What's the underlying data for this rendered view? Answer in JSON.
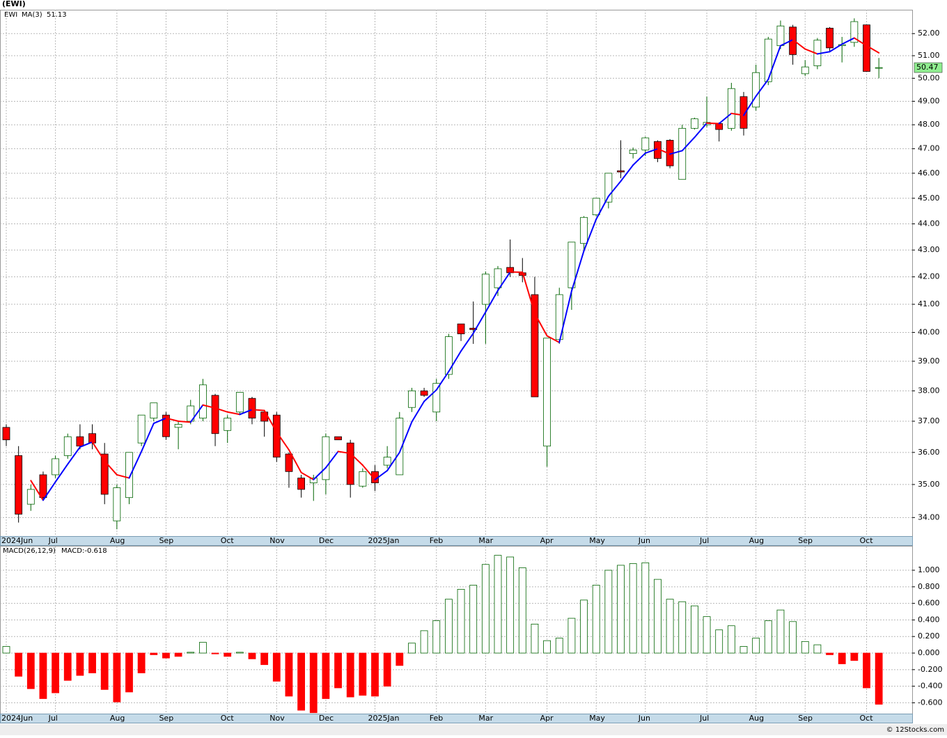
{
  "footer": "© 12Stocks.com",
  "chart_data": [
    {
      "type": "candlestick",
      "title": "(EWI)",
      "symbol": "EWI",
      "categories": [
        "2024Jun",
        null,
        null,
        null,
        "Jul",
        null,
        null,
        null,
        null,
        "Aug",
        null,
        null,
        null,
        "Sep",
        null,
        null,
        null,
        null,
        "Oct",
        null,
        null,
        null,
        "Nov",
        null,
        null,
        null,
        "Dec",
        null,
        null,
        null,
        "2025Jan",
        null,
        null,
        null,
        null,
        "Feb",
        null,
        null,
        null,
        "Mar",
        null,
        null,
        null,
        null,
        "Apr",
        null,
        null,
        null,
        "May",
        null,
        null,
        null,
        "Jun",
        null,
        null,
        null,
        null,
        "Jul",
        null,
        null,
        null,
        "Aug",
        null,
        null,
        null,
        "Sep",
        null,
        null,
        null,
        null,
        "Oct",
        null
      ],
      "open": [
        36.8,
        35.9,
        34.4,
        35.3,
        35.3,
        35.9,
        36.5,
        36.6,
        35.95,
        33.9,
        34.6,
        36.3,
        37.1,
        37.2,
        36.8,
        37.0,
        37.1,
        37.85,
        36.7,
        37.3,
        37.75,
        37.3,
        37.2,
        35.95,
        35.2,
        35.05,
        35.15,
        36.5,
        36.3,
        34.95,
        35.4,
        35.6,
        35.3,
        37.45,
        38.0,
        37.3,
        38.55,
        40.3,
        40.15,
        41.0,
        41.6,
        42.35,
        42.15,
        41.35,
        36.2,
        39.75,
        41.6,
        43.25,
        44.35,
        44.85,
        46.1,
        46.8,
        46.95,
        47.3,
        47.35,
        45.75,
        47.85,
        48.0,
        48.05,
        47.85,
        49.2,
        48.75,
        49.85,
        51.45,
        52.3,
        50.2,
        50.55,
        52.25,
        51.45,
        51.6,
        52.4,
        50.45
      ],
      "high": [
        36.9,
        36.2,
        35.0,
        35.4,
        35.9,
        36.6,
        36.9,
        36.9,
        36.3,
        35.0,
        36.0,
        37.2,
        37.6,
        37.3,
        37.0,
        37.7,
        38.4,
        37.9,
        37.2,
        37.95,
        37.8,
        37.3,
        37.3,
        36.0,
        35.3,
        35.3,
        36.6,
        36.5,
        36.4,
        35.5,
        35.6,
        36.2,
        37.3,
        38.1,
        38.1,
        38.4,
        39.95,
        40.3,
        41.1,
        42.2,
        42.4,
        43.4,
        42.7,
        42.0,
        39.8,
        41.6,
        43.3,
        44.3,
        45.0,
        46.0,
        47.35,
        47.05,
        47.5,
        47.35,
        47.4,
        48.0,
        48.3,
        49.2,
        48.1,
        49.8,
        49.4,
        50.6,
        51.85,
        52.6,
        52.4,
        50.8,
        51.8,
        52.3,
        51.85,
        52.7,
        52.4,
        50.9
      ],
      "low": [
        36.2,
        33.85,
        34.2,
        34.5,
        35.2,
        35.8,
        36.1,
        36.1,
        34.4,
        33.65,
        34.4,
        36.2,
        37.0,
        36.4,
        36.1,
        36.9,
        37.0,
        36.2,
        36.3,
        37.2,
        36.9,
        36.5,
        35.7,
        34.9,
        34.6,
        34.5,
        34.7,
        36.4,
        34.6,
        34.9,
        34.8,
        35.5,
        35.3,
        37.3,
        37.8,
        37.0,
        38.4,
        39.7,
        39.6,
        39.6,
        41.3,
        42.0,
        41.8,
        37.8,
        35.55,
        39.6,
        40.8,
        43.0,
        44.3,
        44.6,
        45.8,
        46.6,
        46.7,
        46.45,
        46.2,
        45.75,
        47.8,
        47.9,
        47.3,
        47.75,
        47.55,
        48.6,
        49.7,
        51.3,
        50.6,
        50.1,
        50.4,
        51.2,
        50.7,
        51.4,
        50.3,
        50.0
      ],
      "close": [
        36.4,
        34.1,
        34.85,
        34.6,
        35.8,
        36.5,
        36.2,
        36.3,
        34.7,
        34.9,
        36.0,
        37.2,
        37.6,
        36.5,
        36.9,
        37.5,
        38.2,
        36.6,
        37.1,
        37.95,
        37.1,
        37.0,
        35.85,
        35.4,
        34.85,
        35.2,
        36.5,
        36.4,
        35.0,
        35.4,
        35.05,
        35.85,
        37.1,
        38.0,
        37.85,
        38.25,
        39.85,
        39.95,
        40.1,
        42.1,
        42.3,
        42.15,
        42.05,
        37.8,
        39.8,
        41.35,
        43.3,
        44.25,
        45.0,
        46.0,
        46.05,
        46.95,
        47.45,
        46.6,
        46.3,
        47.85,
        48.25,
        48.1,
        47.8,
        49.55,
        47.85,
        50.25,
        51.75,
        52.35,
        51.05,
        50.5,
        51.7,
        51.35,
        51.5,
        52.55,
        50.3,
        50.47
      ],
      "up_color": "#ffffff",
      "up_edge": "#006400",
      "down_color": "#ff0000",
      "symbol_color": "#008000",
      "series": [
        {
          "name": "MA(3)",
          "color": "#0000ff",
          "down_color": "#ff0000",
          "values": [
            null,
            null,
            35.12,
            34.52,
            35.08,
            35.63,
            36.17,
            36.33,
            35.73,
            35.3,
            35.2,
            36.03,
            36.93,
            37.1,
            37.0,
            36.97,
            37.53,
            37.43,
            37.3,
            37.22,
            37.38,
            37.35,
            36.65,
            36.08,
            35.37,
            35.15,
            35.52,
            36.03,
            35.97,
            35.6,
            35.15,
            35.43,
            36.0,
            36.98,
            37.65,
            38.03,
            38.65,
            39.35,
            39.97,
            40.72,
            41.5,
            42.18,
            42.17,
            40.67,
            39.88,
            39.65,
            41.48,
            42.97,
            44.18,
            45.08,
            45.68,
            46.33,
            46.82,
            47.0,
            46.78,
            46.92,
            47.47,
            48.07,
            48.05,
            48.48,
            48.4,
            49.22,
            49.95,
            51.45,
            51.72,
            51.3,
            51.08,
            51.18,
            51.52,
            51.8,
            51.45,
            51.13
          ]
        }
      ],
      "ma_value": 51.13,
      "last_price": 50.47,
      "last_price_color": "#90ee90",
      "ylim": [
        33.45,
        53.1
      ],
      "log_scale": true,
      "grid": true,
      "yticks": [
        {
          "value": 34,
          "label": "34.00"
        },
        {
          "value": 35,
          "label": "35.00"
        },
        {
          "value": 36,
          "label": "36.00"
        },
        {
          "value": 37,
          "label": "37.00"
        },
        {
          "value": 38,
          "label": "38.00"
        },
        {
          "value": 39,
          "label": "39.00"
        },
        {
          "value": 40,
          "label": "40.00"
        },
        {
          "value": 41,
          "label": "41.00"
        },
        {
          "value": 42,
          "label": "42.00"
        },
        {
          "value": 43,
          "label": "43.00"
        },
        {
          "value": 44,
          "label": "44.00"
        },
        {
          "value": 45,
          "label": "45.00"
        },
        {
          "value": 46,
          "label": "46.00"
        },
        {
          "value": 47,
          "label": "47.00"
        },
        {
          "value": 48,
          "label": "48.00"
        },
        {
          "value": 49,
          "label": "49.00"
        },
        {
          "value": 50,
          "label": "50.00"
        },
        {
          "value": 51,
          "label": "51.00"
        },
        {
          "value": 52,
          "label": "52.00"
        }
      ]
    },
    {
      "type": "bar",
      "title": "MACD(26,12,9)",
      "categories": [
        "2024Jun",
        null,
        null,
        null,
        "Jul",
        null,
        null,
        null,
        null,
        "Aug",
        null,
        null,
        null,
        "Sep",
        null,
        null,
        null,
        null,
        "Oct",
        null,
        null,
        null,
        "Nov",
        null,
        null,
        null,
        "Dec",
        null,
        null,
        null,
        "2025Jan",
        null,
        null,
        null,
        null,
        "Feb",
        null,
        null,
        null,
        "Mar",
        null,
        null,
        null,
        null,
        "Apr",
        null,
        null,
        null,
        "May",
        null,
        null,
        null,
        "Jun",
        null,
        null,
        null,
        null,
        "Jul",
        null,
        null,
        null,
        "Aug",
        null,
        null,
        null,
        "Sep",
        null,
        null,
        null,
        null,
        "Oct",
        null
      ],
      "series": [
        {
          "name": "MACD:-0.618",
          "color": "#0000ff",
          "up_edge": "#006400",
          "down_color": "#ff0000",
          "values": [
            0.08,
            -0.28,
            -0.43,
            -0.55,
            -0.48,
            -0.33,
            -0.27,
            -0.24,
            -0.44,
            -0.59,
            -0.47,
            -0.24,
            -0.02,
            -0.06,
            -0.04,
            0.01,
            0.13,
            -0.01,
            -0.04,
            0.01,
            -0.07,
            -0.14,
            -0.34,
            -0.52,
            -0.69,
            -0.72,
            -0.55,
            -0.42,
            -0.53,
            -0.51,
            -0.52,
            -0.4,
            -0.15,
            0.12,
            0.27,
            0.39,
            0.65,
            0.77,
            0.82,
            1.07,
            1.18,
            1.16,
            1.03,
            0.35,
            0.15,
            0.18,
            0.42,
            0.64,
            0.82,
            1.0,
            1.06,
            1.08,
            1.09,
            0.89,
            0.65,
            0.62,
            0.57,
            0.44,
            0.28,
            0.33,
            0.08,
            0.18,
            0.39,
            0.52,
            0.38,
            0.14,
            0.1,
            -0.02,
            -0.13,
            -0.09,
            -0.42,
            -0.618
          ]
        }
      ],
      "ylim": [
        -0.731,
        1.286
      ],
      "grid": true,
      "yticks": [
        {
          "value": -0.6,
          "label": "-0.600"
        },
        {
          "value": -0.4,
          "label": "-0.400"
        },
        {
          "value": -0.2,
          "label": "-0.200"
        },
        {
          "value": 0,
          "label": "0.000"
        },
        {
          "value": 0.2,
          "label": "0.200"
        },
        {
          "value": 0.4,
          "label": "0.400"
        },
        {
          "value": 0.6,
          "label": "0.600"
        },
        {
          "value": 0.8,
          "label": "0.800"
        },
        {
          "value": 1.0,
          "label": "1.000"
        }
      ]
    }
  ]
}
